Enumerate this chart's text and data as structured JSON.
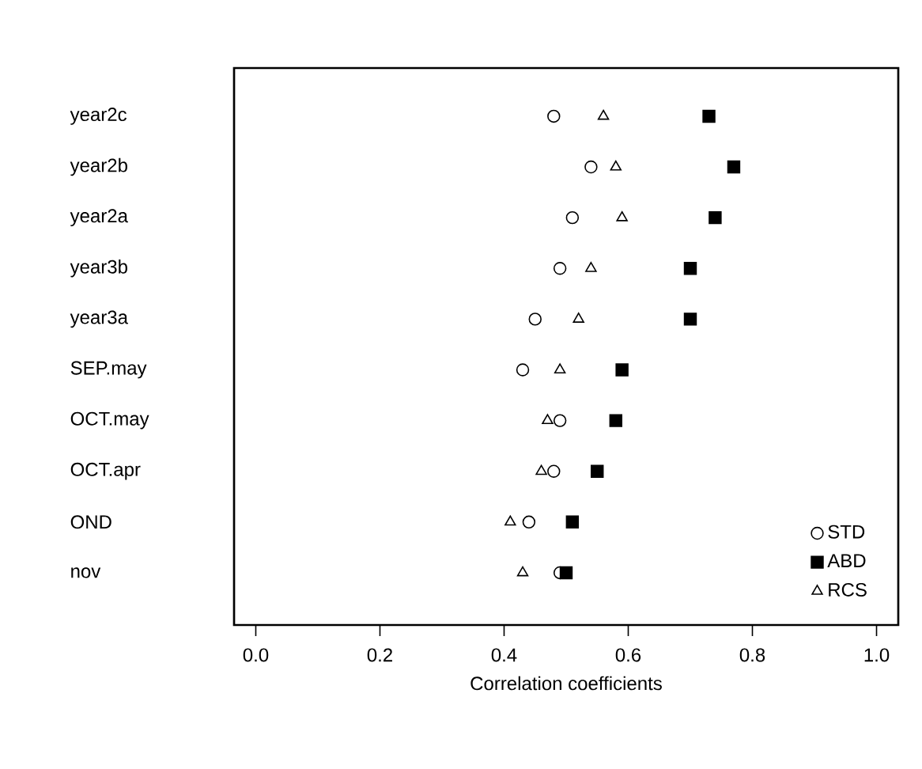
{
  "chart_data": {
    "type": "scatter",
    "orientation": "horizontal",
    "xlabel": "Correlation coefficients",
    "categories": [
      "year2c",
      "year2b",
      "year2a",
      "year3b",
      "year3a",
      "SEP.may",
      "OCT.may",
      "OCT.apr",
      "OND",
      "nov"
    ],
    "xlim": [
      -0.035,
      1.035
    ],
    "xticks": [
      {
        "value": 0,
        "label": "0.0"
      },
      {
        "value": 0.2,
        "label": "0.2"
      },
      {
        "value": 0.4,
        "label": "0.4"
      },
      {
        "value": 0.6,
        "label": "0.6"
      },
      {
        "value": 0.8,
        "label": "0.8"
      },
      {
        "value": 1,
        "label": "1.0"
      }
    ],
    "legend": "bottom right",
    "grid": false,
    "series": [
      {
        "name": "STD",
        "color": "#000000",
        "marker": "circle",
        "values": [
          0.48,
          0.54,
          0.51,
          0.49,
          0.45,
          0.43,
          0.49,
          0.48,
          0.44,
          0.49
        ]
      },
      {
        "name": "ABD",
        "color": "#000000",
        "marker": "square",
        "values": [
          0.73,
          0.77,
          0.74,
          0.7,
          0.7,
          0.59,
          0.58,
          0.55,
          0.51,
          0.5
        ]
      },
      {
        "name": "RCS",
        "color": "#000000",
        "marker": "triangle",
        "values": [
          0.56,
          0.58,
          0.59,
          0.54,
          0.52,
          0.49,
          0.47,
          0.46,
          0.41,
          0.43
        ]
      }
    ]
  }
}
